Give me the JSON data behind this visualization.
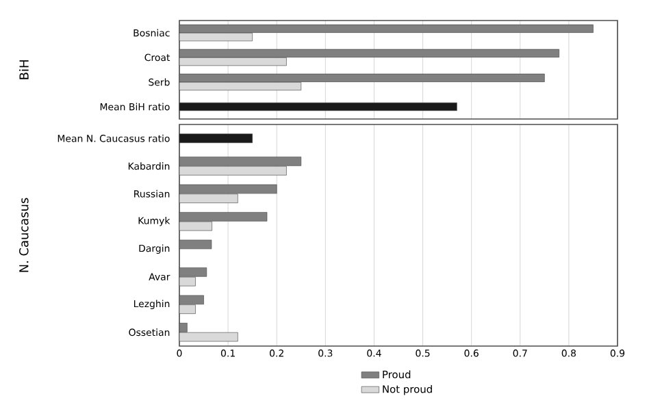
{
  "chart_data": [
    {
      "type": "bar",
      "orientation": "horizontal",
      "ylabel": "BiH",
      "categories": [
        "Bosniac",
        "Croat",
        "Serb",
        "Mean BiH ratio"
      ],
      "series": [
        {
          "color": "#808080",
          "values": [
            0.85,
            0.78,
            0.75,
            null
          ]
        },
        {
          "color": "#d9d9d9",
          "values": [
            0.15,
            0.22,
            0.25,
            null
          ]
        },
        {
          "color": "#1a1a1a",
          "values": [
            null,
            null,
            null,
            0.57
          ]
        }
      ],
      "xlim": [
        0,
        0.9
      ],
      "xticks": [
        0,
        0.1,
        0.2,
        0.3,
        0.4,
        0.5,
        0.6,
        0.7,
        0.8,
        0.9
      ],
      "grid": "x",
      "tick_labels": "y"
    },
    {
      "type": "bar",
      "orientation": "horizontal",
      "ylabel": "N. Caucasus",
      "categories": [
        "Mean N. Caucasus ratio",
        "Kabardin",
        "Russian",
        "Kumyk",
        "Dargin",
        "Avar",
        "Lezghin",
        "Ossetian"
      ],
      "series": [
        {
          "name": "Proud",
          "color": "#808080",
          "values": [
            null,
            0.25,
            0.2,
            0.18,
            0.066,
            0.056,
            0.05,
            0.016
          ]
        },
        {
          "name": "Not proud",
          "color": "#d9d9d9",
          "values": [
            null,
            0.22,
            0.12,
            0.067,
            null,
            0.033,
            0.033,
            0.12
          ]
        },
        {
          "color": "#1a1a1a",
          "values": [
            0.15,
            null,
            null,
            null,
            null,
            null,
            null,
            null
          ]
        }
      ],
      "xlim": [
        0,
        0.9
      ],
      "xticks": [
        0,
        0.1,
        0.2,
        0.3,
        0.4,
        0.5,
        0.6,
        0.7,
        0.8,
        0.9
      ],
      "grid": "x",
      "legend": "bottom"
    }
  ]
}
